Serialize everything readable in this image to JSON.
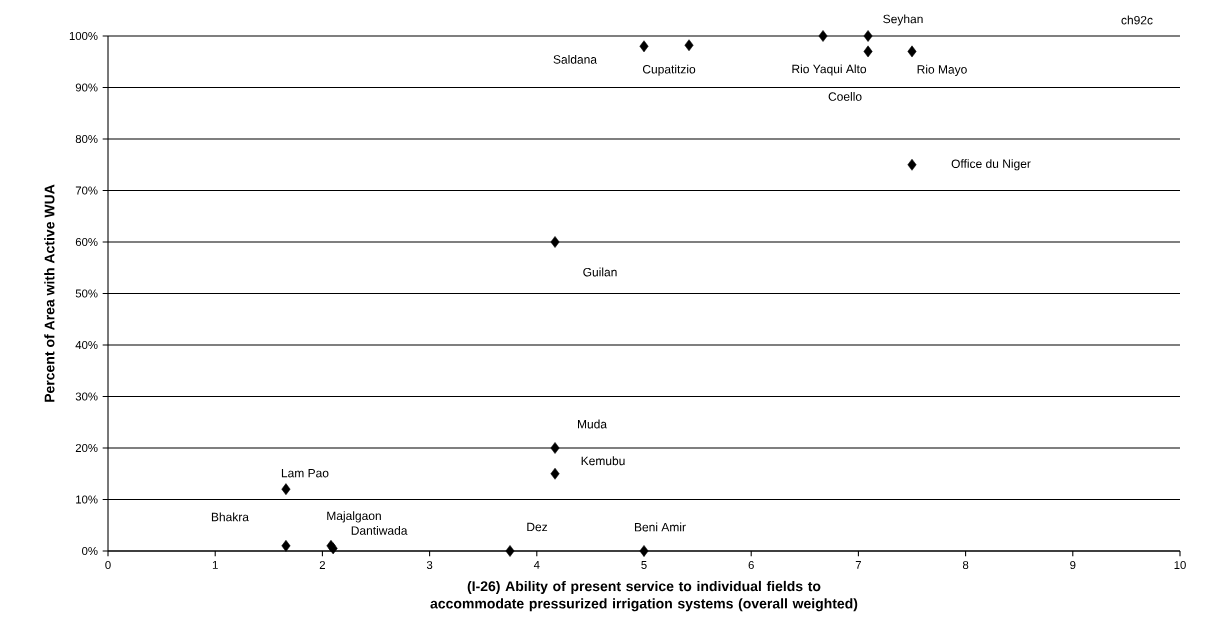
{
  "chart_data": {
    "type": "scatter",
    "xlabel": "(I-26) Ability of present service to individual fields to accommodate pressurized irrigation systems (overall weighted)",
    "ylabel": "Percent of Area with Active WUA",
    "x": [
      5.0,
      5.42,
      6.67,
      7.09,
      7.09,
      7.5,
      7.5,
      4.17,
      4.17,
      4.17,
      1.66,
      1.66,
      2.08,
      2.1,
      3.75,
      5.0
    ],
    "series": [
      {
        "color": "#000000",
        "values": [
          98,
          98.2,
          100,
          97,
          100,
          97,
          75,
          60,
          20,
          15,
          12,
          1,
          1,
          0.5,
          0,
          0
        ]
      }
    ],
    "marker": "diamond",
    "grid": "y",
    "xlim": [
      0,
      10
    ],
    "xticks": [
      0,
      1,
      2,
      3,
      4,
      5,
      6,
      7,
      8,
      9,
      10
    ],
    "ylim": [
      0,
      100
    ],
    "yticks": [
      {
        "value": 0,
        "label": "0%"
      },
      {
        "value": 10,
        "label": "10%"
      },
      {
        "value": 20,
        "label": "20%"
      },
      {
        "value": 30,
        "label": "30%"
      },
      {
        "value": 40,
        "label": "40%"
      },
      {
        "value": 50,
        "label": "50%"
      },
      {
        "value": 60,
        "label": "60%"
      },
      {
        "value": 70,
        "label": "70%"
      },
      {
        "value": 80,
        "label": "80%"
      },
      {
        "value": 90,
        "label": "90%"
      },
      {
        "value": 100,
        "label": "100%"
      }
    ],
    "annotations": [
      "Saldana",
      {
        "text": "Cupatitzio",
        "x": 5.42,
        "y": 98.2
      },
      {
        "text": "Rio Yaqui Alto",
        "x": 6.67,
        "y": 100
      },
      "Coello",
      {
        "text": "Seyhan",
        "x": 7.09,
        "y": 100
      },
      {
        "text": "Rio Mayo",
        "x": 7.5,
        "y": 97
      },
      "Office du Niger",
      "Guilan",
      {
        "text": "Muda",
        "x": 4.17,
        "y": 20
      },
      {
        "text": "Kemubu",
        "x": 4.17,
        "y": 15
      },
      {
        "text": "Lam Pao",
        "x": 1.66,
        "y": 12
      },
      "Bhakra",
      {
        "text": "Majalgaon",
        "x": 2.08,
        "y": 1
      },
      {
        "text": "Dantiwada",
        "x": 2.1,
        "y": 0.5
      },
      {
        "text": "Dez",
        "x": 3.75,
        "y": 0
      },
      {
        "text": "Beni Amir",
        "x": 5.0,
        "y": 0
      },
      "ch92c"
    ]
  }
}
